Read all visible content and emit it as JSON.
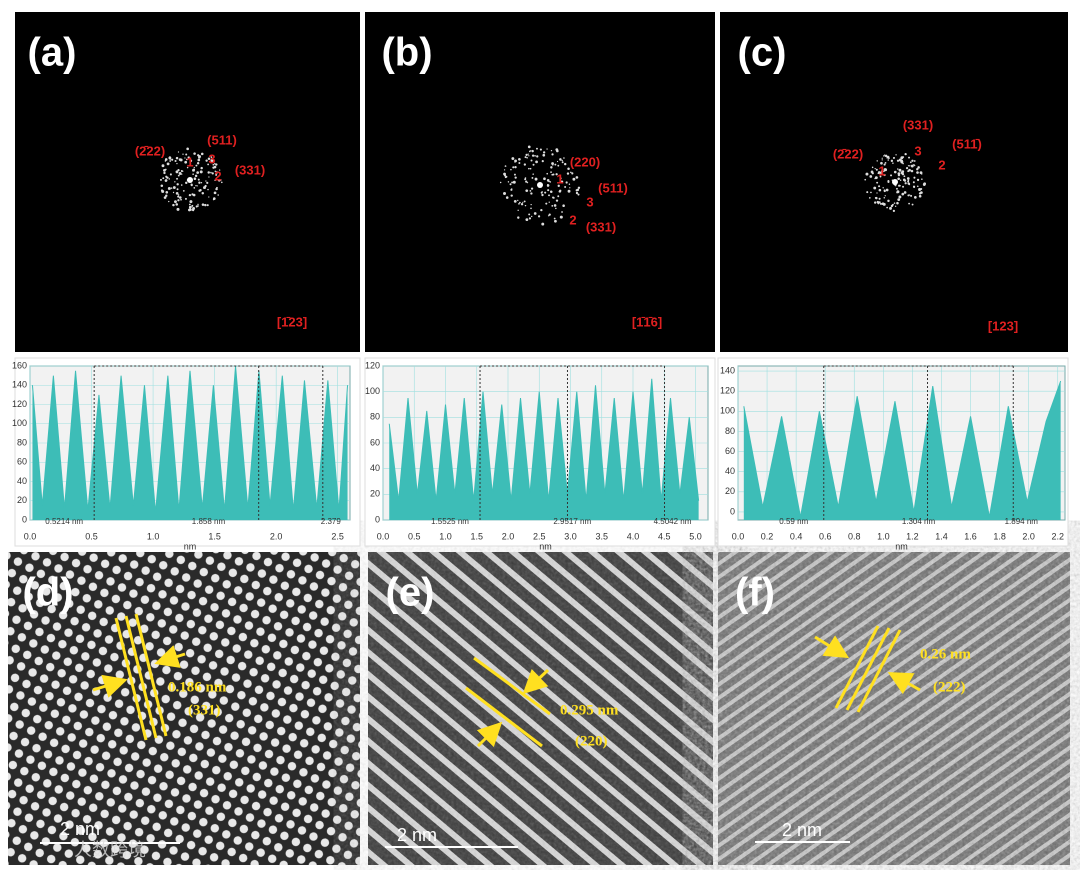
{
  "fft_panels": [
    {
      "label": "(a)",
      "spots": [
        "(2̄22)",
        "(511)",
        "(331)",
        "1",
        "3",
        "2"
      ],
      "zone": "[1̄23]"
    },
    {
      "label": "(b)",
      "spots": [
        "(220)",
        "1",
        "(511)",
        "3",
        "2",
        "(331)"
      ],
      "zone": "[1̄1̄6]"
    },
    {
      "label": "(c)",
      "spots": [
        "(331)",
        "(2̄22)",
        "(511̄)",
        "3",
        "2",
        "1"
      ],
      "zone": "[123]"
    }
  ],
  "profiles": [
    {
      "type": "area",
      "color": "#3dbdb7",
      "xlabel": "nm",
      "x": [
        0.02,
        0.1,
        0.19,
        0.28,
        0.37,
        0.47,
        0.56,
        0.65,
        0.74,
        0.84,
        0.93,
        1.02,
        1.12,
        1.21,
        1.3,
        1.4,
        1.49,
        1.58,
        1.67,
        1.77,
        1.86,
        1.95,
        2.05,
        2.14,
        2.23,
        2.33,
        2.42,
        2.51,
        2.58
      ],
      "values": [
        140,
        15,
        150,
        12,
        155,
        10,
        130,
        12,
        150,
        15,
        140,
        8,
        150,
        10,
        155,
        12,
        140,
        10,
        160,
        12,
        155,
        15,
        150,
        10,
        145,
        12,
        145,
        10,
        140
      ],
      "xlim": [
        0,
        2.6
      ],
      "ylim": [
        0,
        160
      ],
      "xticks": [
        {
          "value": 0,
          "label": "0.0"
        },
        {
          "value": 0.5,
          "label": "0.5"
        },
        {
          "value": 1,
          "label": "1.0"
        },
        {
          "value": 1.5,
          "label": "1.5"
        },
        {
          "value": 2,
          "label": "2.0"
        },
        {
          "value": 2.5,
          "label": "2.5"
        }
      ],
      "yticks": [
        0,
        20,
        40,
        60,
        80,
        100,
        120,
        140,
        160
      ],
      "cursor_labels": [
        "0.5214 nm",
        "1.858 nm",
        "2.379"
      ]
    },
    {
      "type": "area",
      "color": "#3dbdb7",
      "xlabel": "nm",
      "x": [
        0.1,
        0.25,
        0.4,
        0.55,
        0.7,
        0.85,
        1.0,
        1.15,
        1.3,
        1.45,
        1.6,
        1.75,
        1.9,
        2.05,
        2.2,
        2.35,
        2.5,
        2.65,
        2.8,
        2.95,
        3.1,
        3.25,
        3.4,
        3.55,
        3.7,
        3.85,
        4.0,
        4.15,
        4.3,
        4.45,
        4.6,
        4.75,
        4.9,
        5.05
      ],
      "values": [
        75,
        15,
        95,
        20,
        85,
        15,
        90,
        20,
        95,
        15,
        100,
        20,
        90,
        15,
        95,
        20,
        100,
        15,
        95,
        20,
        100,
        15,
        105,
        20,
        95,
        15,
        100,
        20,
        110,
        15,
        95,
        20,
        80,
        15
      ],
      "xlim": [
        0,
        5.2
      ],
      "ylim": [
        0,
        120
      ],
      "xticks": [
        {
          "value": 0,
          "label": "0.0"
        },
        {
          "value": 0.5,
          "label": "0.5"
        },
        {
          "value": 1,
          "label": "1.0"
        },
        {
          "value": 1.5,
          "label": "1.5"
        },
        {
          "value": 2,
          "label": "2.0"
        },
        {
          "value": 2.5,
          "label": "2.5"
        },
        {
          "value": 3,
          "label": "3.0"
        },
        {
          "value": 3.5,
          "label": "3.5"
        },
        {
          "value": 4,
          "label": "4.0"
        },
        {
          "value": 4.5,
          "label": "4.5"
        },
        {
          "value": 5,
          "label": "5.0"
        }
      ],
      "yticks": [
        0,
        20,
        40,
        60,
        80,
        100,
        120
      ],
      "cursor_labels": [
        "1.5525 nm",
        "2.9517 nm",
        "4.5042 nm"
      ]
    },
    {
      "type": "area",
      "color": "#3dbdb7",
      "xlabel": "nm",
      "x": [
        0.04,
        0.17,
        0.3,
        0.43,
        0.56,
        0.69,
        0.82,
        0.95,
        1.08,
        1.21,
        1.34,
        1.47,
        1.6,
        1.73,
        1.86,
        1.99,
        2.12,
        2.22
      ],
      "values": [
        105,
        5,
        95,
        -5,
        100,
        5,
        115,
        10,
        110,
        0,
        125,
        5,
        95,
        -5,
        105,
        10,
        90,
        130
      ],
      "xlim": [
        0,
        2.25
      ],
      "ylim": [
        -8,
        145
      ],
      "xticks": [
        {
          "value": 0,
          "label": "0.0"
        },
        {
          "value": 0.2,
          "label": "0.2"
        },
        {
          "value": 0.4,
          "label": "0.4"
        },
        {
          "value": 0.6,
          "label": "0.6"
        },
        {
          "value": 0.8,
          "label": "0.8"
        },
        {
          "value": 1,
          "label": "1.0"
        },
        {
          "value": 1.2,
          "label": "1.2"
        },
        {
          "value": 1.4,
          "label": "1.4"
        },
        {
          "value": 1.6,
          "label": "1.6"
        },
        {
          "value": 1.8,
          "label": "1.8"
        },
        {
          "value": 2,
          "label": "2.0"
        },
        {
          "value": 2.2,
          "label": "2.2"
        }
      ],
      "yticks": [
        0,
        20,
        40,
        60,
        80,
        100,
        120,
        140
      ],
      "cursor_labels": [
        "0.59 nm",
        "1.304 nm",
        "1.894 nm"
      ]
    }
  ],
  "hrtem_panels": [
    {
      "label": "(d)",
      "d_spacing": "0.186 nm",
      "plane": "(331)",
      "scale_bar": "2 nm"
    },
    {
      "label": "(e)",
      "d_spacing": "0.295 nm",
      "plane": "(220)",
      "scale_bar": "2 nm"
    },
    {
      "label": "(f)",
      "d_spacing": "0.26 nm",
      "plane": "(222)",
      "scale_bar": "2 nm"
    }
  ],
  "watermark": "人数跨境"
}
